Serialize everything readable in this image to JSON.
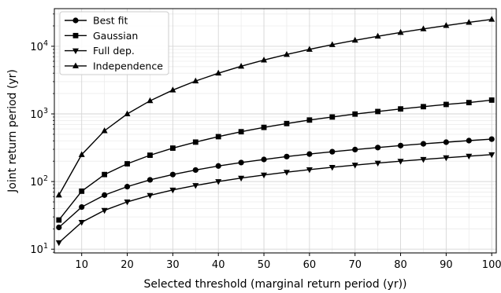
{
  "chart_data": {
    "type": "line",
    "xlabel": "Selected  threshold (marginal return period (yr))",
    "ylabel": "Joint return period (yr)",
    "xlim": [
      4,
      101
    ],
    "ylim": [
      8.8,
      36000
    ],
    "yscale": "log",
    "grid": true,
    "legend_position": "top-left",
    "xticks": [
      10,
      20,
      30,
      40,
      50,
      60,
      70,
      80,
      90,
      100
    ],
    "yticks": [
      {
        "value": 10,
        "base": "10",
        "exp": "1"
      },
      {
        "value": 100,
        "base": "10",
        "exp": "2"
      },
      {
        "value": 1000,
        "base": "10",
        "exp": "3"
      },
      {
        "value": 10000,
        "base": "10",
        "exp": "4"
      }
    ],
    "x": [
      5,
      10,
      15,
      20,
      25,
      30,
      35,
      40,
      45,
      50,
      55,
      60,
      65,
      70,
      75,
      80,
      85,
      90,
      95,
      100
    ],
    "series": [
      {
        "name": "Best fit",
        "marker": "circle",
        "values": [
          21,
          42,
          63,
          84,
          106,
          127,
          148,
          170,
          191,
          212,
          234,
          255,
          276,
          297,
          318,
          340,
          361,
          382,
          403,
          424
        ]
      },
      {
        "name": "Gaussian",
        "marker": "square",
        "values": [
          27,
          72,
          127,
          183,
          245,
          312,
          383,
          461,
          545,
          632,
          720,
          812,
          900,
          995,
          1085,
          1185,
          1280,
          1380,
          1470,
          1600
        ]
      },
      {
        "name": "Full dep.",
        "marker": "triangle-down",
        "values": [
          12.5,
          25,
          37.5,
          50,
          62.5,
          75,
          87.5,
          100,
          112.5,
          125,
          137.5,
          150,
          162.5,
          175,
          187.5,
          200,
          212.5,
          225,
          237.5,
          250
        ]
      },
      {
        "name": "Independence",
        "marker": "triangle-up",
        "values": [
          63,
          250,
          563,
          1000,
          1563,
          2250,
          3063,
          4000,
          5063,
          6250,
          7563,
          9000,
          10563,
          12250,
          14063,
          16000,
          18063,
          20250,
          22563,
          25000
        ]
      }
    ]
  }
}
